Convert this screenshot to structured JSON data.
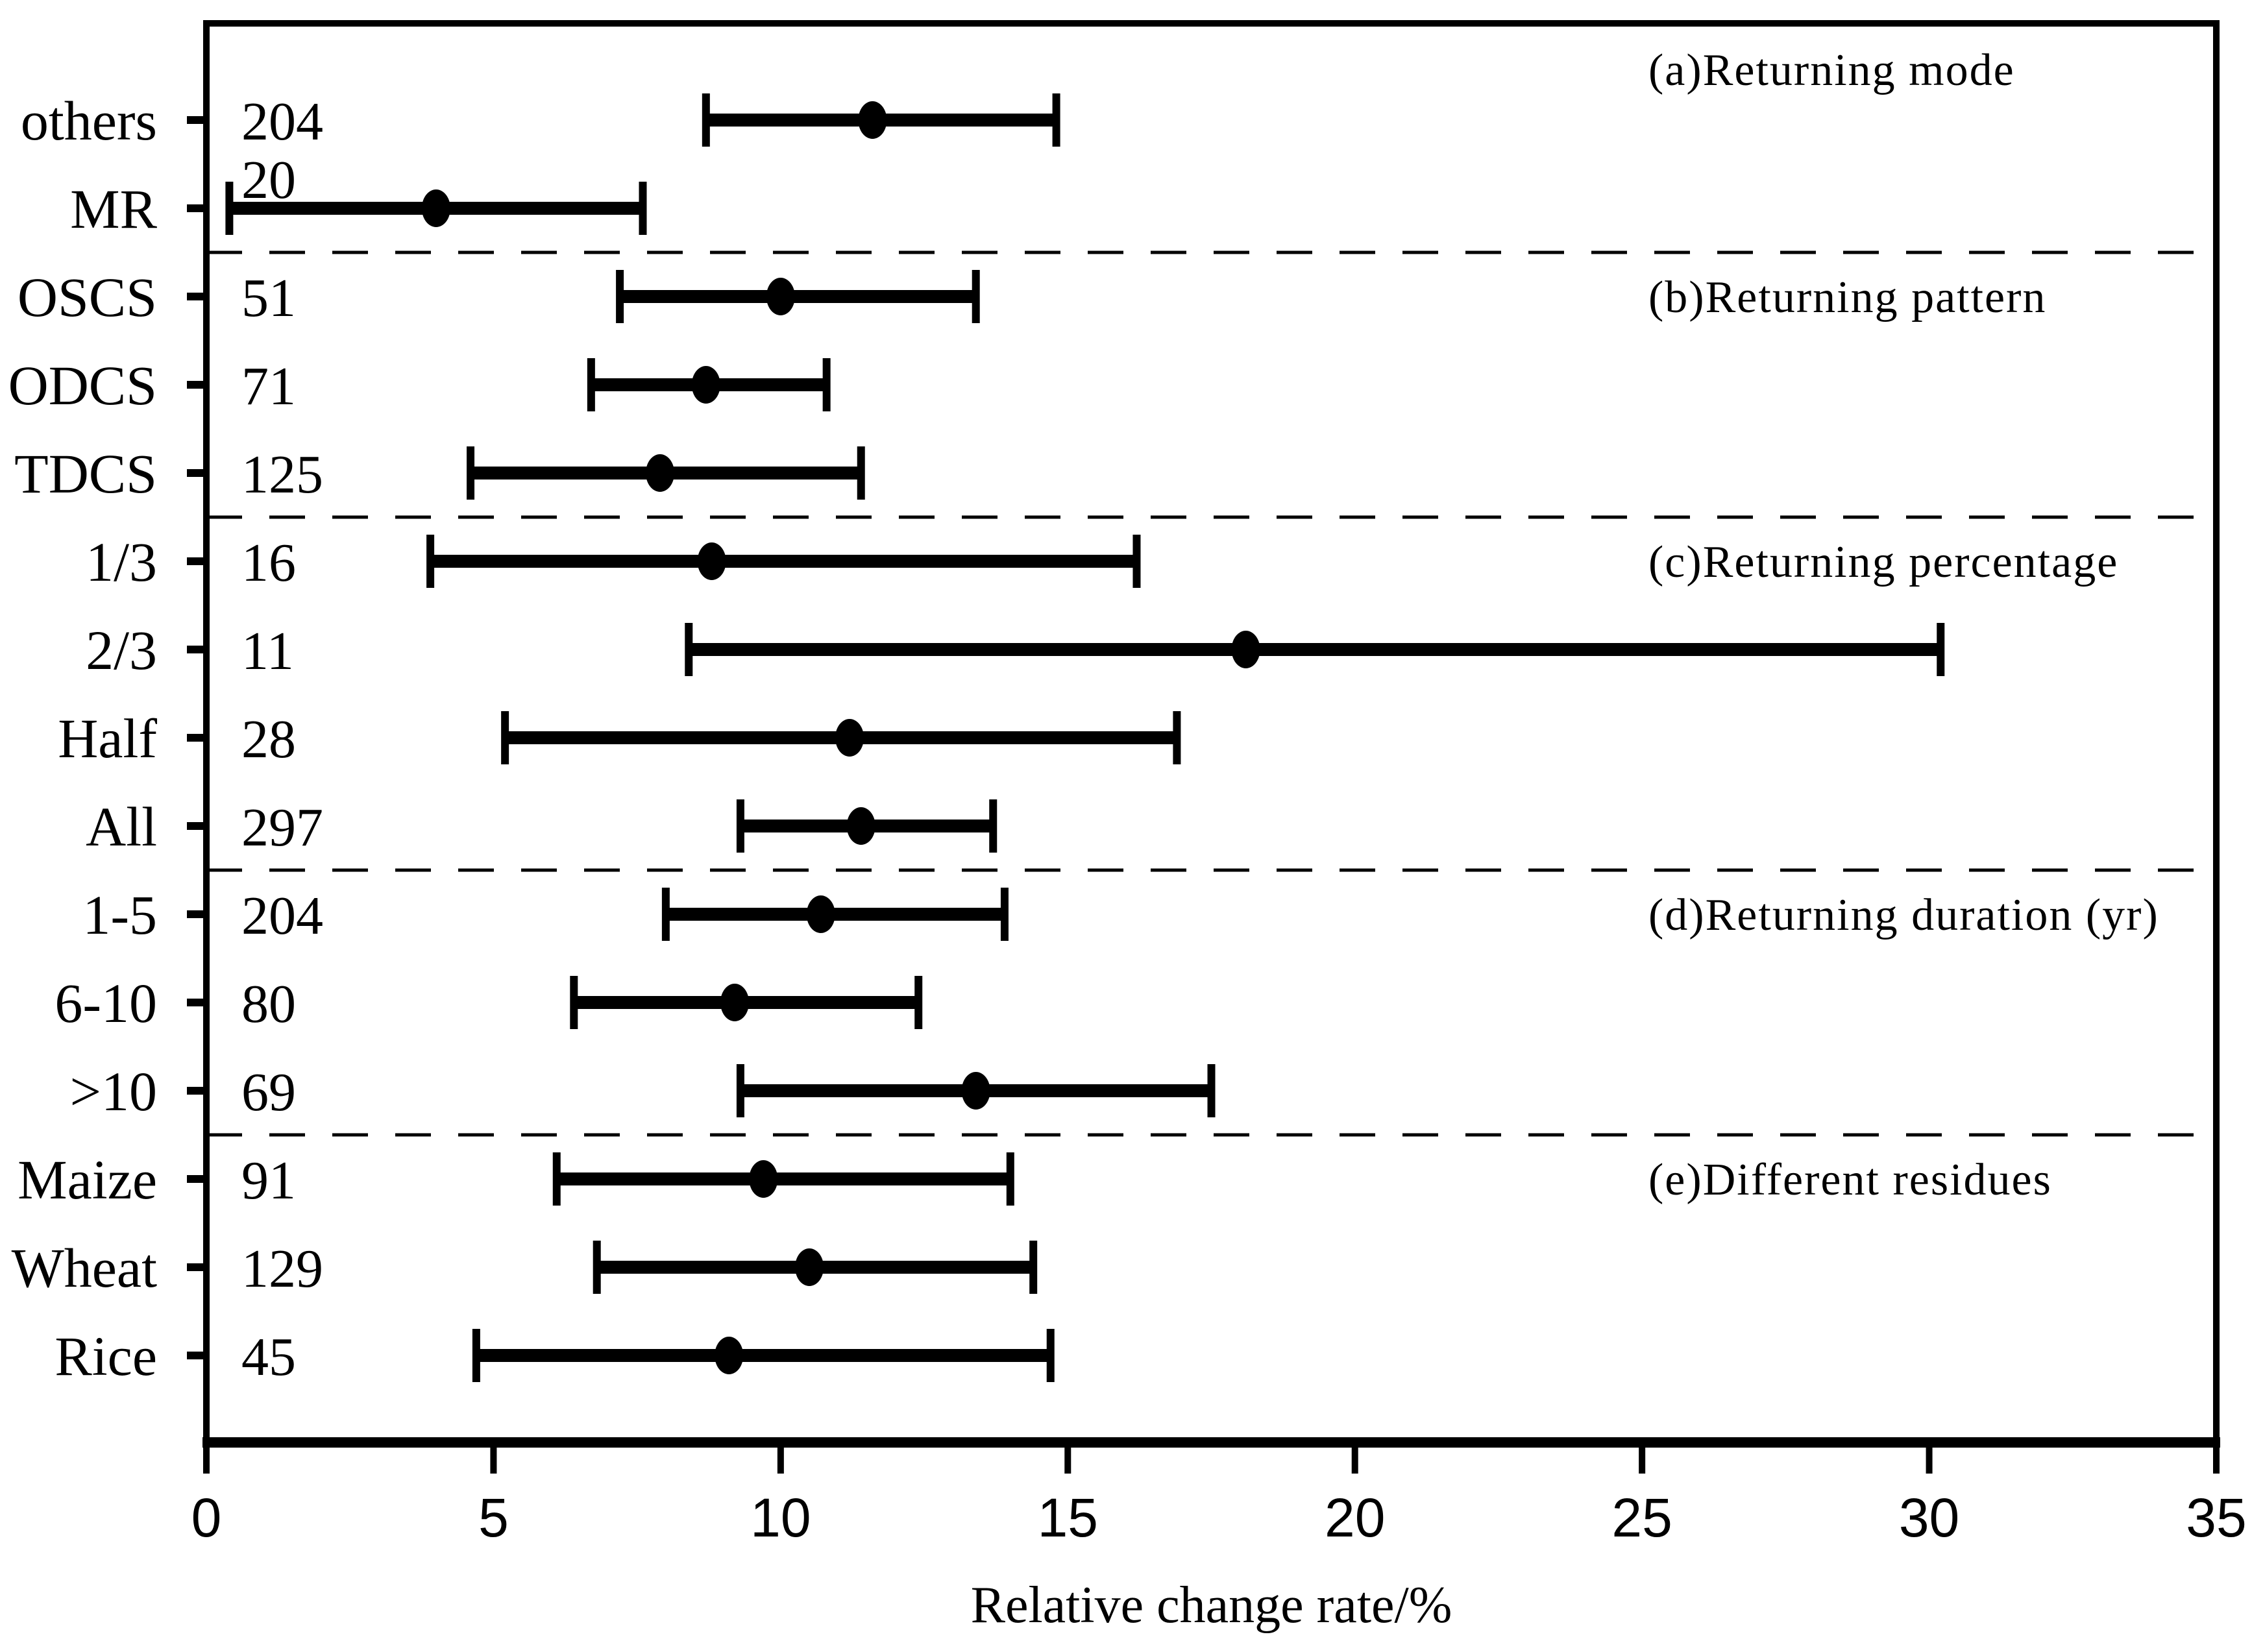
{
  "chart_data": {
    "type": "scatter",
    "subtype": "forest-errorbar",
    "title": "",
    "xlabel": "Relative change rate/%",
    "ylabel": "",
    "xlim": [
      0,
      35
    ],
    "xticks": [
      0,
      5,
      10,
      15,
      20,
      25,
      30,
      35
    ],
    "grid": false,
    "marker_color": "#000000",
    "line_color": "#000000",
    "background_color": "#ffffff",
    "sections": [
      {
        "label": "(a)Returning mode",
        "rows": [
          {
            "category": "others",
            "n": "204",
            "mean": 11.6,
            "ci_low": 8.7,
            "ci_high": 14.8
          },
          {
            "category": "MR",
            "n": "20",
            "mean": 4.0,
            "ci_low": 0.4,
            "ci_high": 7.6
          }
        ]
      },
      {
        "label": "(b)Returning pattern",
        "rows": [
          {
            "category": "OSCS",
            "n": "51",
            "mean": 10.0,
            "ci_low": 7.2,
            "ci_high": 13.4
          },
          {
            "category": "ODCS",
            "n": "71",
            "mean": 8.7,
            "ci_low": 6.7,
            "ci_high": 10.8
          },
          {
            "category": "TDCS",
            "n": "125",
            "mean": 7.9,
            "ci_low": 4.6,
            "ci_high": 11.4
          }
        ]
      },
      {
        "label": "(c)Returning percentage",
        "rows": [
          {
            "category": "1/3",
            "n": "16",
            "mean": 8.8,
            "ci_low": 3.9,
            "ci_high": 16.2
          },
          {
            "category": "2/3",
            "n": "11",
            "mean": 18.1,
            "ci_low": 8.4,
            "ci_high": 30.2
          },
          {
            "category": "Half",
            "n": "28",
            "mean": 11.2,
            "ci_low": 5.2,
            "ci_high": 16.9
          },
          {
            "category": "All",
            "n": "297",
            "mean": 11.4,
            "ci_low": 9.3,
            "ci_high": 13.7
          }
        ]
      },
      {
        "label": "(d)Returning duration (yr)",
        "rows": [
          {
            "category": "1-5",
            "n": "204",
            "mean": 10.7,
            "ci_low": 8.0,
            "ci_high": 13.9
          },
          {
            "category": "6-10",
            "n": "80",
            "mean": 9.2,
            "ci_low": 6.4,
            "ci_high": 12.4
          },
          {
            "category": ">10",
            "n": "69",
            "mean": 13.4,
            "ci_low": 9.3,
            "ci_high": 17.5
          }
        ]
      },
      {
        "label": "(e)Different residues",
        "rows": [
          {
            "category": "Maize",
            "n": "91",
            "mean": 9.7,
            "ci_low": 6.1,
            "ci_high": 14.0
          },
          {
            "category": "Wheat",
            "n": "129",
            "mean": 10.5,
            "ci_low": 6.8,
            "ci_high": 14.4
          },
          {
            "category": "Rice",
            "n": "45",
            "mean": 9.1,
            "ci_low": 4.7,
            "ci_high": 14.7
          }
        ]
      }
    ]
  }
}
